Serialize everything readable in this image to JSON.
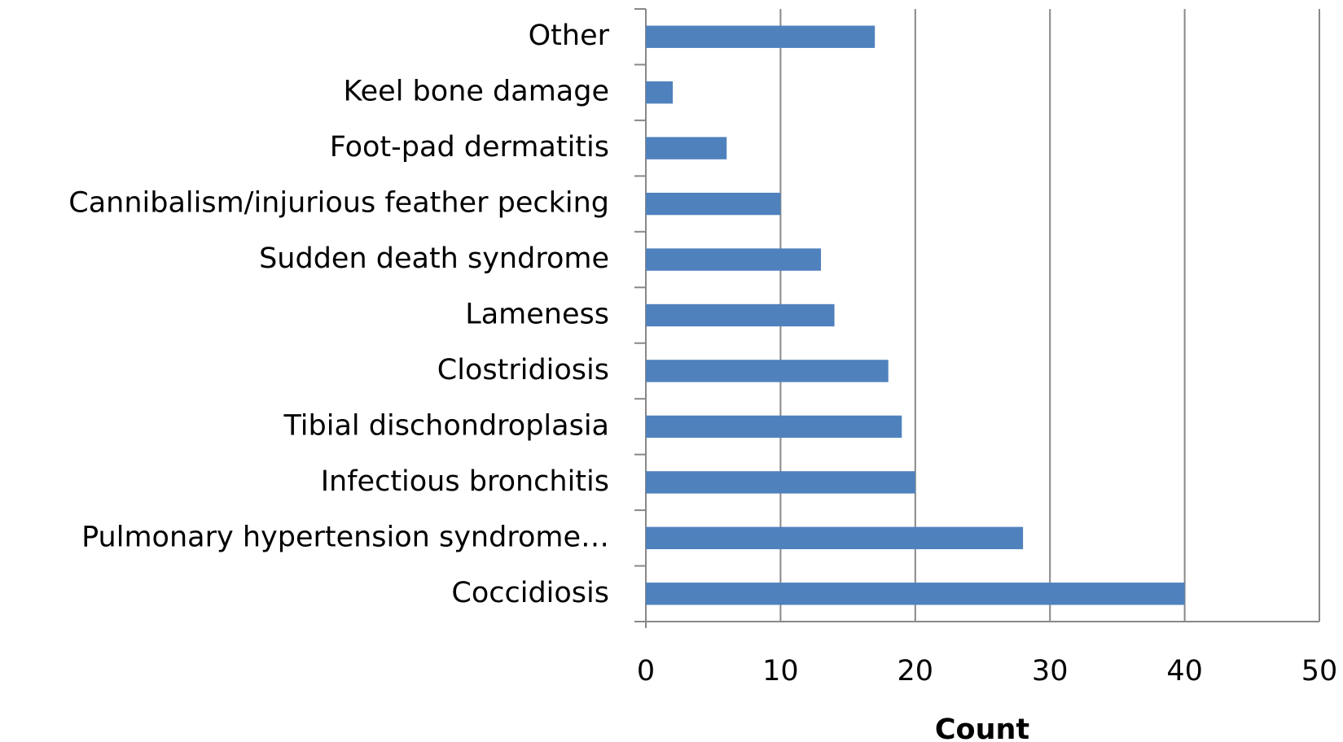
{
  "chart_data": {
    "type": "bar",
    "orientation": "horizontal",
    "xlabel": "Count",
    "categories": [
      "Other",
      "Keel bone damage",
      "Foot-pad dermatitis",
      "Cannibalism/injurious feather pecking",
      "Sudden death syndrome",
      "Lameness",
      "Clostridiosis",
      "Tibial dischondroplasia",
      "Infectious bronchitis",
      "Pulmonary hypertension syndrome…",
      "Coccidiosis"
    ],
    "values": [
      17,
      2,
      6,
      10,
      13,
      14,
      18,
      19,
      20,
      28,
      40
    ],
    "color": "#4f81bd",
    "xlim": [
      0,
      50
    ],
    "xticks": [
      0,
      10,
      20,
      30,
      40,
      50
    ],
    "grid": true
  }
}
